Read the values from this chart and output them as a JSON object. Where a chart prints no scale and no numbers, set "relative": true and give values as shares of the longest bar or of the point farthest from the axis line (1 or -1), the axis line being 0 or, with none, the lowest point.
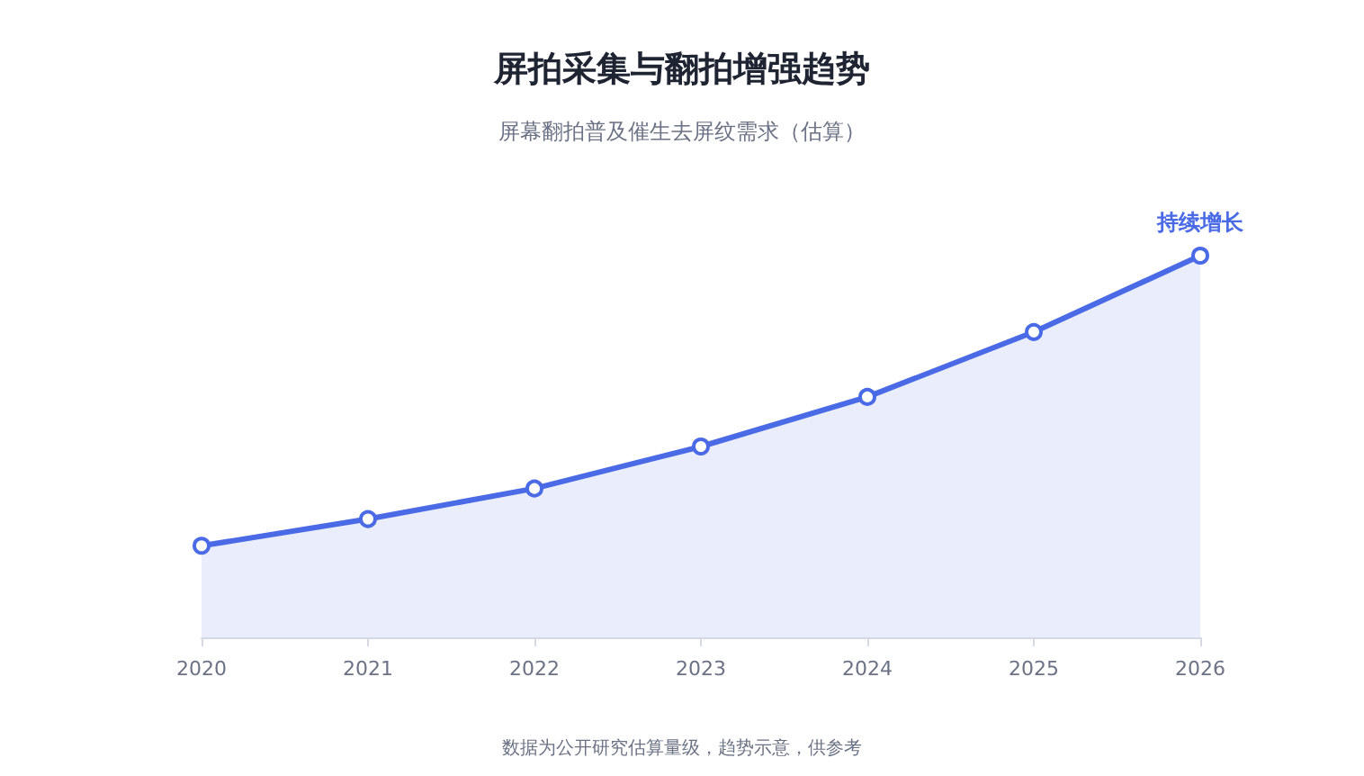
{
  "chart_data": {
    "type": "area",
    "title": "屏拍采集与翻拍增强趋势",
    "subtitle": "屏幕翻拍普及催生去屏纹需求（估算）",
    "categories": [
      "2020",
      "2021",
      "2022",
      "2023",
      "2024",
      "2025",
      "2026"
    ],
    "series": [
      {
        "color": "#4a6ae6",
        "values": [
          0.24,
          0.31,
          0.39,
          0.5,
          0.63,
          0.8,
          1
        ]
      }
    ],
    "relative": true,
    "marker": "circle",
    "grid": false,
    "annotations": [
      {
        "text": "持续增长",
        "x": "2026",
        "y": 1
      },
      "数据为公开研究估算量级，趋势示意，供参考"
    ]
  }
}
